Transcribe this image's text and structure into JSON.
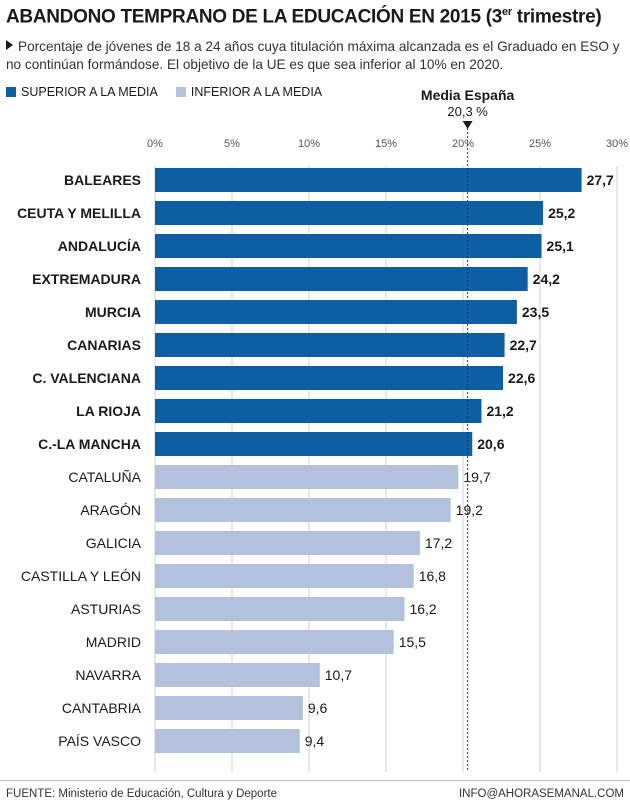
{
  "header": {
    "title": "ABANDONO TEMPRANO DE LA EDUCACIÓN EN 2015 (3",
    "title_sup": "er",
    "title_end": " trimestre)",
    "subtitle": "Porcentaje de jóvenes de 18 a 24 años cuya titulación máxima alcanzada es el Graduado en ESO y no continúan formándose. El objetivo de la UE es que sea inferior al 10% en 2020."
  },
  "legend": {
    "above": "SUPERIOR A LA MEDIA",
    "below": "INFERIOR A LA MEDIA"
  },
  "colors": {
    "above": "#0d5ea3",
    "below": "#b4c1dc",
    "grid": "#d0d0d0",
    "reference": "#333333"
  },
  "chart_data": {
    "type": "bar",
    "orientation": "horizontal",
    "xlim": [
      0,
      30
    ],
    "ticks": [
      0,
      5,
      10,
      15,
      20,
      25,
      30
    ],
    "tick_labels": [
      "0%",
      "5%",
      "10%",
      "15%",
      "20%",
      "25%",
      "30%"
    ],
    "grid": true,
    "reference": {
      "value": 20.3,
      "label": "Media España",
      "value_label": "20,3 %"
    },
    "categories": [
      "BALEARES",
      "CEUTA Y MELILLA",
      "ANDALUCÍA",
      "EXTREMADURA",
      "MURCIA",
      "CANARIAS",
      "C. VALENCIANA",
      "LA RIOJA",
      "C.-LA MANCHA",
      "CATALUÑA",
      "ARAGÓN",
      "GALICIA",
      "CASTILLA Y LEÓN",
      "ASTURIAS",
      "MADRID",
      "NAVARRA",
      "CANTABRIA",
      "PAÍS VASCO"
    ],
    "values": [
      27.7,
      25.2,
      25.1,
      24.2,
      23.5,
      22.7,
      22.6,
      21.2,
      20.6,
      19.7,
      19.2,
      17.2,
      16.8,
      16.2,
      15.5,
      10.7,
      9.6,
      9.4
    ],
    "value_labels": [
      "27,7",
      "25,2",
      "25,1",
      "24,2",
      "23,5",
      "22,7",
      "22,6",
      "21,2",
      "20,6",
      "19,7",
      "19,2",
      "17,2",
      "16,8",
      "16,2",
      "15,5",
      "10,7",
      "9,6",
      "9,4"
    ]
  },
  "footer": {
    "source": "FUENTE: Ministerio de Educación, Cultura y Deporte",
    "contact": "INFO@AHORASEMANAL.COM"
  }
}
